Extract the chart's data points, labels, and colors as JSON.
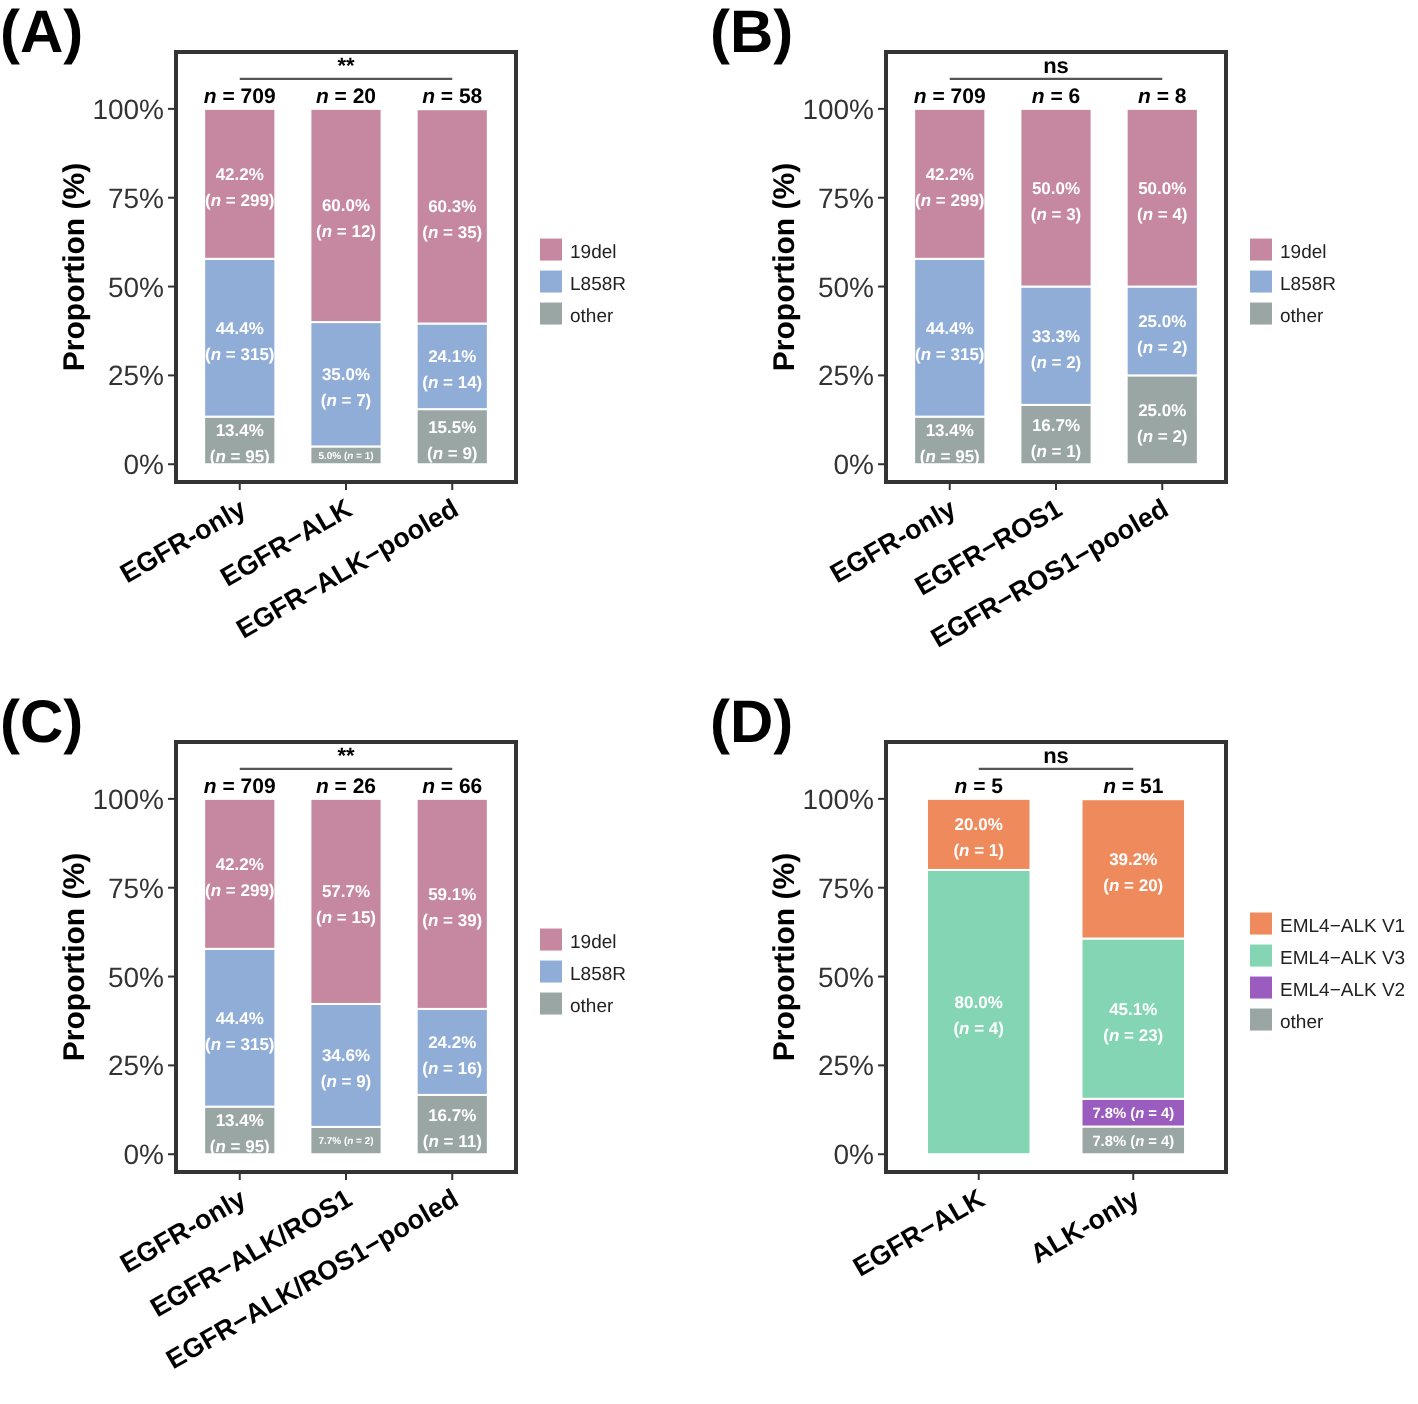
{
  "chart_data": [
    {
      "type": "bar",
      "title": "(A)",
      "ylabel": "Proportion (%)",
      "categories": [
        "EGFR-only",
        "EGFR−ALK",
        "EGFR−ALK−pooled"
      ],
      "stacked": true,
      "ylim": [
        -5,
        116
      ],
      "yticks": [
        {
          "value": 0,
          "label": "0%"
        },
        {
          "value": 25,
          "label": "25%"
        },
        {
          "value": 50,
          "label": "50%"
        },
        {
          "value": 75,
          "label": "75%"
        },
        {
          "value": 100,
          "label": "100%"
        }
      ],
      "legend": "right",
      "grid": false,
      "annotations": [
        "**",
        {
          "text": "n = 709",
          "x": "EGFR-only",
          "y": 100
        },
        {
          "text": "n = 20",
          "x": "EGFR−ALK",
          "y": 100
        },
        {
          "text": "n = 58",
          "x": "EGFR−ALK−pooled",
          "y": 100
        }
      ],
      "series": [
        {
          "name": "other",
          "color": "#9aa6a4",
          "values": [
            13.4,
            5.0,
            15.5
          ],
          "value_labels": [
            "13.4% (n = 95)",
            "5.0% (n = 1)",
            "15.5% (n = 9)"
          ]
        },
        {
          "name": "L858R",
          "color": "#8fadd7",
          "values": [
            44.4,
            35.0,
            24.1
          ],
          "value_labels": [
            "44.4% (n = 315)",
            "35.0% (n = 7)",
            "24.1% (n = 14)"
          ]
        },
        {
          "name": "19del",
          "color": "#c687a1",
          "values": [
            42.2,
            60.0,
            60.3
          ],
          "value_labels": [
            "42.2% (n = 299)",
            "60.0% (n = 12)",
            "60.3% (n = 35)"
          ]
        }
      ]
    },
    {
      "type": "bar",
      "title": "(B)",
      "ylabel": "Proportion (%)",
      "categories": [
        "EGFR-only",
        "EGFR−ROS1",
        "EGFR−ROS1−pooled"
      ],
      "stacked": true,
      "ylim": [
        -5,
        116
      ],
      "yticks": [
        {
          "value": 0,
          "label": "0%"
        },
        {
          "value": 25,
          "label": "25%"
        },
        {
          "value": 50,
          "label": "50%"
        },
        {
          "value": 75,
          "label": "75%"
        },
        {
          "value": 100,
          "label": "100%"
        }
      ],
      "legend": "right",
      "grid": false,
      "annotations": [
        "ns",
        {
          "text": "n = 709",
          "x": "EGFR-only",
          "y": 100
        },
        {
          "text": "n = 6",
          "x": "EGFR−ROS1",
          "y": 100
        },
        {
          "text": "n = 8",
          "x": "EGFR−ROS1−pooled",
          "y": 100
        }
      ],
      "series": [
        {
          "name": "other",
          "color": "#9aa6a4",
          "values": [
            13.4,
            16.7,
            25.0
          ],
          "value_labels": [
            "13.4% (n = 95)",
            "16.7% (n = 1)",
            "25.0% (n = 2)"
          ]
        },
        {
          "name": "L858R",
          "color": "#8fadd7",
          "values": [
            44.4,
            33.3,
            25.0
          ],
          "value_labels": [
            "44.4% (n = 315)",
            "33.3% (n = 2)",
            "25.0% (n = 2)"
          ]
        },
        {
          "name": "19del",
          "color": "#c687a1",
          "values": [
            42.2,
            50.0,
            50.0
          ],
          "value_labels": [
            "42.2% (n = 299)",
            "50.0% (n = 3)",
            "50.0% (n = 4)"
          ]
        }
      ]
    },
    {
      "type": "bar",
      "title": "(C)",
      "ylabel": "Proportion (%)",
      "categories": [
        "EGFR-only",
        "EGFR−ALK/ROS1",
        "EGFR−ALK/ROS1−pooled"
      ],
      "stacked": true,
      "ylim": [
        -5,
        116
      ],
      "yticks": [
        {
          "value": 0,
          "label": "0%"
        },
        {
          "value": 25,
          "label": "25%"
        },
        {
          "value": 50,
          "label": "50%"
        },
        {
          "value": 75,
          "label": "75%"
        },
        {
          "value": 100,
          "label": "100%"
        }
      ],
      "legend": "right",
      "grid": false,
      "annotations": [
        "**",
        {
          "text": "n = 709",
          "x": "EGFR-only",
          "y": 100
        },
        {
          "text": "n = 26",
          "x": "EGFR−ALK/ROS1",
          "y": 100
        },
        {
          "text": "n = 66",
          "x": "EGFR−ALK/ROS1−pooled",
          "y": 100
        }
      ],
      "series": [
        {
          "name": "other",
          "color": "#9aa6a4",
          "values": [
            13.4,
            7.7,
            16.7
          ],
          "value_labels": [
            "13.4% (n = 95)",
            "7.7% (n = 2)",
            "16.7% (n = 11)"
          ]
        },
        {
          "name": "L858R",
          "color": "#8fadd7",
          "values": [
            44.4,
            34.6,
            24.2
          ],
          "value_labels": [
            "44.4% (n = 315)",
            "34.6% (n = 9)",
            "24.2% (n = 16)"
          ]
        },
        {
          "name": "19del",
          "color": "#c687a1",
          "values": [
            42.2,
            57.7,
            59.1
          ],
          "value_labels": [
            "42.2% (n = 299)",
            "57.7% (n = 15)",
            "59.1% (n = 39)"
          ]
        }
      ]
    },
    {
      "type": "bar",
      "title": "(D)",
      "ylabel": "Proportion (%)",
      "categories": [
        "EGFR−ALK",
        "ALK-only"
      ],
      "stacked": true,
      "ylim": [
        -5,
        116
      ],
      "yticks": [
        {
          "value": 0,
          "label": "0%"
        },
        {
          "value": 25,
          "label": "25%"
        },
        {
          "value": 50,
          "label": "50%"
        },
        {
          "value": 75,
          "label": "75%"
        },
        {
          "value": 100,
          "label": "100%"
        }
      ],
      "legend": "right",
      "grid": false,
      "annotations": [
        "ns",
        {
          "text": "n = 5",
          "x": "EGFR−ALK",
          "y": 100
        },
        {
          "text": "n = 51",
          "x": "ALK-only",
          "y": 100
        }
      ],
      "series": [
        {
          "name": "other",
          "color": "#9aa6a4",
          "values": [
            null,
            7.8
          ],
          "value_labels": [
            null,
            "7.8% (n = 4)"
          ]
        },
        {
          "name": "EML4−ALK V2",
          "color": "#9b5cbf",
          "values": [
            null,
            7.8
          ],
          "value_labels": [
            null,
            "7.8% (n = 4)"
          ]
        },
        {
          "name": "EML4−ALK V3",
          "color": "#84d5b3",
          "values": [
            80.0,
            45.1
          ],
          "value_labels": [
            "80.0% (n = 4)",
            "45.1% (n = 23)"
          ]
        },
        {
          "name": "EML4−ALK V1",
          "color": "#ef8a5d",
          "values": [
            20.0,
            39.2
          ],
          "value_labels": [
            "20.0% (n = 1)",
            "39.2% (n = 20)"
          ]
        }
      ]
    }
  ]
}
